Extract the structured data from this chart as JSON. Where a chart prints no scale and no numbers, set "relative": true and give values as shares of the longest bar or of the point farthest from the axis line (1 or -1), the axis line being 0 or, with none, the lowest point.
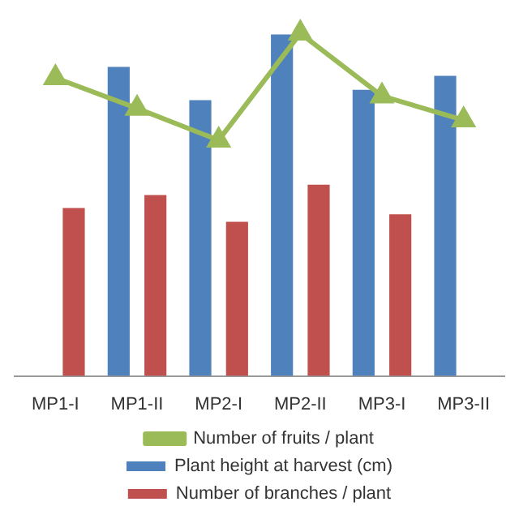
{
  "chart_data": {
    "type": "bar",
    "relative": true,
    "categories": [
      "MP1-I",
      "MP1-II",
      "MP2-I",
      "MP2-II",
      "MP3-I",
      "MP3-II"
    ],
    "series": [
      {
        "name": "Plant height at harvest (cm)",
        "color": "#4f81bd",
        "values": [
          null,
          0.902,
          0.805,
          0.997,
          0.835,
          0.876
        ]
      },
      {
        "name": "Number of branches / plant",
        "color": "#c0504d",
        "values": [
          0.49,
          0.528,
          0.45,
          0.558,
          0.472,
          null
        ]
      },
      {
        "name": "Number of fruits / plant",
        "type": "line",
        "color": "#9bbb59",
        "values": [
          0.87,
          0.781,
          0.688,
          1,
          0.817,
          0.747
        ]
      }
    ],
    "marker": "triangle",
    "legend": "bottom",
    "grid": false
  }
}
